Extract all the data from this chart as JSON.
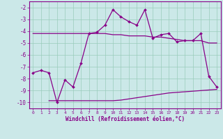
{
  "xlabel": "Windchill (Refroidissement éolien,°C)",
  "background_color": "#cbe8e8",
  "line_color": "#880088",
  "xlim": [
    -0.5,
    23.5
  ],
  "ylim": [
    -10.5,
    -1.5
  ],
  "yticks": [
    -2,
    -3,
    -4,
    -5,
    -6,
    -7,
    -8,
    -9,
    -10
  ],
  "xticks": [
    0,
    1,
    2,
    3,
    4,
    5,
    6,
    7,
    8,
    9,
    10,
    11,
    12,
    13,
    14,
    15,
    16,
    17,
    18,
    19,
    20,
    21,
    22,
    23
  ],
  "main_x": [
    0,
    1,
    2,
    3,
    4,
    5,
    6,
    7,
    8,
    9,
    10,
    11,
    12,
    13,
    14,
    15,
    16,
    17,
    18,
    19,
    20,
    21,
    22,
    23
  ],
  "main_y": [
    -7.5,
    -7.3,
    -7.5,
    -10.0,
    -8.1,
    -8.7,
    -6.7,
    -4.2,
    -4.1,
    -3.5,
    -2.2,
    -2.8,
    -3.2,
    -3.5,
    -2.2,
    -4.6,
    -4.3,
    -4.2,
    -4.9,
    -4.8,
    -4.8,
    -4.2,
    -7.8,
    -8.7
  ],
  "upper_x": [
    0,
    1,
    2,
    3,
    4,
    5,
    6,
    7,
    8,
    9,
    10,
    11,
    12,
    13,
    14,
    15,
    16,
    17,
    18,
    19,
    20,
    21,
    22,
    23
  ],
  "upper_y": [
    -4.2,
    -4.2,
    -4.2,
    -4.2,
    -4.2,
    -4.2,
    -4.2,
    -4.2,
    -4.2,
    -4.2,
    -4.3,
    -4.3,
    -4.4,
    -4.4,
    -4.4,
    -4.5,
    -4.5,
    -4.6,
    -4.7,
    -4.8,
    -4.8,
    -4.8,
    -5.0,
    -5.0
  ],
  "lower_x": [
    2,
    3,
    4,
    5,
    6,
    7,
    8,
    9,
    10,
    11,
    12,
    13,
    14,
    15,
    16,
    17,
    18,
    19,
    20,
    21,
    22,
    23
  ],
  "lower_y": [
    -9.85,
    -9.85,
    -9.85,
    -9.85,
    -9.85,
    -9.85,
    -9.85,
    -9.85,
    -9.85,
    -9.8,
    -9.7,
    -9.6,
    -9.5,
    -9.4,
    -9.3,
    -9.2,
    -9.15,
    -9.1,
    -9.05,
    -9.0,
    -8.95,
    -8.9
  ]
}
